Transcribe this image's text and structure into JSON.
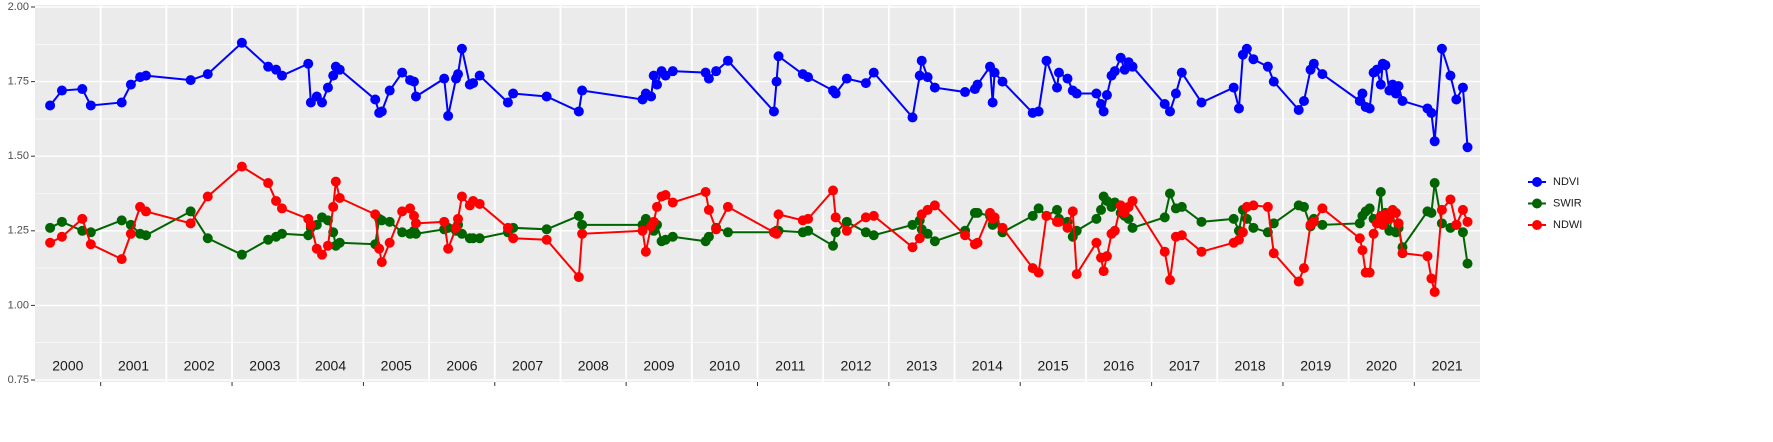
{
  "chart_data": {
    "type": "line",
    "x": [
      2000.23,
      2000.41,
      2000.72,
      2000.85,
      2001.32,
      2001.46,
      2001.6,
      2001.69,
      2002.37,
      2002.63,
      2003.15,
      2003.55,
      2003.67,
      2003.76,
      2004.16,
      2004.2,
      2004.29,
      2004.37,
      2004.46,
      2004.54,
      2004.58,
      2004.64,
      2005.18,
      2005.24,
      2005.28,
      2005.4,
      2005.59,
      2005.71,
      2005.77,
      2005.8,
      2006.23,
      2006.29,
      2006.41,
      2006.44,
      2006.5,
      2006.62,
      2006.67,
      2006.77,
      2007.2,
      2007.28,
      2007.79,
      2008.28,
      2008.33,
      2009.25,
      2009.3,
      2009.38,
      2009.42,
      2009.47,
      2009.54,
      2009.6,
      2009.71,
      2010.21,
      2010.26,
      2010.37,
      2010.55,
      2011.25,
      2011.29,
      2011.32,
      2011.69,
      2011.77,
      2012.15,
      2012.19,
      2012.36,
      2012.65,
      2012.77,
      2013.36,
      2013.47,
      2013.5,
      2013.59,
      2013.7,
      2014.16,
      2014.31,
      2014.35,
      2014.54,
      2014.58,
      2014.61,
      2014.73,
      2015.19,
      2015.28,
      2015.4,
      2015.56,
      2015.59,
      2015.72,
      2015.8,
      2015.86,
      2016.16,
      2016.23,
      2016.27,
      2016.32,
      2016.39,
      2016.44,
      2016.53,
      2016.59,
      2016.65,
      2016.71,
      2017.2,
      2017.28,
      2017.37,
      2017.46,
      2017.76,
      2018.25,
      2018.33,
      2018.39,
      2018.45,
      2018.55,
      2018.77,
      2018.86,
      2019.24,
      2019.32,
      2019.42,
      2019.47,
      2019.6,
      2020.17,
      2020.21,
      2020.26,
      2020.32,
      2020.38,
      2020.43,
      2020.49,
      2020.52,
      2020.56,
      2020.62,
      2020.67,
      2020.72,
      2020.76,
      2020.82,
      2021.2,
      2021.26,
      2021.31,
      2021.42,
      2021.55,
      2021.64,
      2021.74,
      2021.81
    ],
    "series": [
      {
        "name": "NDVI",
        "color": "#0000ff",
        "values": [
          1.67,
          1.72,
          1.725,
          1.67,
          1.68,
          1.74,
          1.765,
          1.77,
          1.755,
          1.775,
          1.88,
          1.8,
          1.79,
          1.77,
          1.81,
          1.68,
          1.7,
          1.68,
          1.73,
          1.77,
          1.8,
          1.79,
          1.69,
          1.645,
          1.65,
          1.72,
          1.78,
          1.755,
          1.75,
          1.7,
          1.76,
          1.635,
          1.76,
          1.775,
          1.86,
          1.74,
          1.745,
          1.77,
          1.68,
          1.71,
          1.7,
          1.65,
          1.72,
          1.69,
          1.71,
          1.7,
          1.77,
          1.74,
          1.785,
          1.77,
          1.785,
          1.78,
          1.76,
          1.785,
          1.82,
          1.65,
          1.75,
          1.835,
          1.775,
          1.765,
          1.72,
          1.71,
          1.76,
          1.745,
          1.78,
          1.63,
          1.77,
          1.82,
          1.765,
          1.73,
          1.715,
          1.725,
          1.74,
          1.8,
          1.68,
          1.78,
          1.75,
          1.645,
          1.65,
          1.82,
          1.73,
          1.78,
          1.76,
          1.72,
          1.71,
          1.71,
          1.675,
          1.65,
          1.705,
          1.77,
          1.785,
          1.83,
          1.79,
          1.815,
          1.8,
          1.675,
          1.65,
          1.71,
          1.78,
          1.68,
          1.73,
          1.66,
          1.84,
          1.86,
          1.825,
          1.8,
          1.75,
          1.655,
          1.685,
          1.79,
          1.81,
          1.775,
          1.685,
          1.71,
          1.665,
          1.66,
          1.78,
          1.79,
          1.74,
          1.81,
          1.805,
          1.72,
          1.74,
          1.71,
          1.735,
          1.685,
          1.66,
          1.645,
          1.55,
          1.86,
          1.77,
          1.69,
          1.73,
          1.53
        ]
      },
      {
        "name": "SWIR",
        "color": "#006400",
        "values": [
          1.26,
          1.28,
          1.25,
          1.245,
          1.285,
          1.27,
          1.24,
          1.235,
          1.315,
          1.225,
          1.17,
          1.22,
          1.23,
          1.24,
          1.235,
          1.26,
          1.27,
          1.295,
          1.285,
          1.245,
          1.2,
          1.21,
          1.205,
          1.29,
          1.285,
          1.28,
          1.245,
          1.24,
          1.25,
          1.24,
          1.255,
          1.26,
          1.25,
          1.27,
          1.24,
          1.225,
          1.225,
          1.225,
          1.245,
          1.26,
          1.255,
          1.3,
          1.27,
          1.27,
          1.29,
          1.275,
          1.25,
          1.27,
          1.215,
          1.22,
          1.23,
          1.215,
          1.23,
          1.26,
          1.245,
          1.245,
          1.25,
          1.25,
          1.245,
          1.25,
          1.2,
          1.245,
          1.28,
          1.245,
          1.235,
          1.27,
          1.285,
          1.255,
          1.24,
          1.215,
          1.25,
          1.31,
          1.31,
          1.3,
          1.27,
          1.28,
          1.245,
          1.3,
          1.325,
          1.3,
          1.32,
          1.29,
          1.28,
          1.23,
          1.25,
          1.29,
          1.32,
          1.365,
          1.35,
          1.33,
          1.345,
          1.31,
          1.3,
          1.29,
          1.26,
          1.295,
          1.375,
          1.325,
          1.33,
          1.28,
          1.29,
          1.25,
          1.32,
          1.29,
          1.26,
          1.245,
          1.275,
          1.335,
          1.33,
          1.265,
          1.29,
          1.27,
          1.275,
          1.3,
          1.315,
          1.325,
          1.29,
          1.28,
          1.38,
          1.295,
          1.31,
          1.25,
          1.31,
          1.245,
          1.26,
          1.195,
          1.315,
          1.31,
          1.41,
          1.275,
          1.26,
          1.27,
          1.245,
          1.14
        ]
      },
      {
        "name": "NDWI",
        "color": "#ff0000",
        "values": [
          1.21,
          1.23,
          1.29,
          1.205,
          1.155,
          1.24,
          1.33,
          1.315,
          1.275,
          1.365,
          1.465,
          1.41,
          1.35,
          1.325,
          1.29,
          1.27,
          1.19,
          1.17,
          1.2,
          1.33,
          1.415,
          1.36,
          1.305,
          1.19,
          1.145,
          1.21,
          1.315,
          1.325,
          1.3,
          1.275,
          1.28,
          1.19,
          1.26,
          1.29,
          1.365,
          1.335,
          1.35,
          1.34,
          1.26,
          1.225,
          1.22,
          1.095,
          1.24,
          1.25,
          1.18,
          1.265,
          1.28,
          1.33,
          1.365,
          1.37,
          1.345,
          1.38,
          1.32,
          1.255,
          1.33,
          1.245,
          1.24,
          1.305,
          1.285,
          1.29,
          1.385,
          1.295,
          1.25,
          1.295,
          1.3,
          1.195,
          1.225,
          1.305,
          1.32,
          1.335,
          1.235,
          1.205,
          1.21,
          1.31,
          1.29,
          1.295,
          1.26,
          1.125,
          1.11,
          1.3,
          1.28,
          1.28,
          1.26,
          1.315,
          1.105,
          1.21,
          1.16,
          1.115,
          1.165,
          1.24,
          1.25,
          1.335,
          1.31,
          1.33,
          1.35,
          1.18,
          1.085,
          1.23,
          1.235,
          1.18,
          1.21,
          1.22,
          1.245,
          1.33,
          1.335,
          1.33,
          1.175,
          1.08,
          1.125,
          1.27,
          1.28,
          1.325,
          1.225,
          1.185,
          1.11,
          1.11,
          1.24,
          1.275,
          1.3,
          1.27,
          1.305,
          1.29,
          1.32,
          1.31,
          1.275,
          1.175,
          1.165,
          1.09,
          1.045,
          1.32,
          1.355,
          1.27,
          1.32,
          1.28
        ]
      }
    ],
    "xlim": [
      2000,
      2022
    ],
    "xticks": [
      {
        "value": 2000.5,
        "label": "2000"
      },
      {
        "value": 2001.5,
        "label": "2001"
      },
      {
        "value": 2002.5,
        "label": "2002"
      },
      {
        "value": 2003.5,
        "label": "2003"
      },
      {
        "value": 2004.5,
        "label": "2004"
      },
      {
        "value": 2005.5,
        "label": "2005"
      },
      {
        "value": 2006.5,
        "label": "2006"
      },
      {
        "value": 2007.5,
        "label": "2007"
      },
      {
        "value": 2008.5,
        "label": "2008"
      },
      {
        "value": 2009.5,
        "label": "2009"
      },
      {
        "value": 2010.5,
        "label": "2010"
      },
      {
        "value": 2011.5,
        "label": "2011"
      },
      {
        "value": 2012.5,
        "label": "2012"
      },
      {
        "value": 2013.5,
        "label": "2013"
      },
      {
        "value": 2014.5,
        "label": "2014"
      },
      {
        "value": 2015.5,
        "label": "2015"
      },
      {
        "value": 2016.5,
        "label": "2016"
      },
      {
        "value": 2017.5,
        "label": "2017"
      },
      {
        "value": 2018.5,
        "label": "2018"
      },
      {
        "value": 2019.5,
        "label": "2019"
      },
      {
        "value": 2020.5,
        "label": "2020"
      },
      {
        "value": 2021.5,
        "label": "2021"
      }
    ],
    "ylim": [
      0.75,
      2.0
    ],
    "yticks": [
      {
        "value": 0.75,
        "label": "0.75"
      },
      {
        "value": 1.0,
        "label": "1.00"
      },
      {
        "value": 1.25,
        "label": "1.25"
      },
      {
        "value": 1.5,
        "label": "1.50"
      },
      {
        "value": 1.75,
        "label": "1.75"
      },
      {
        "value": 2.0,
        "label": "2.00"
      }
    ],
    "grid": true,
    "legend": "right"
  }
}
